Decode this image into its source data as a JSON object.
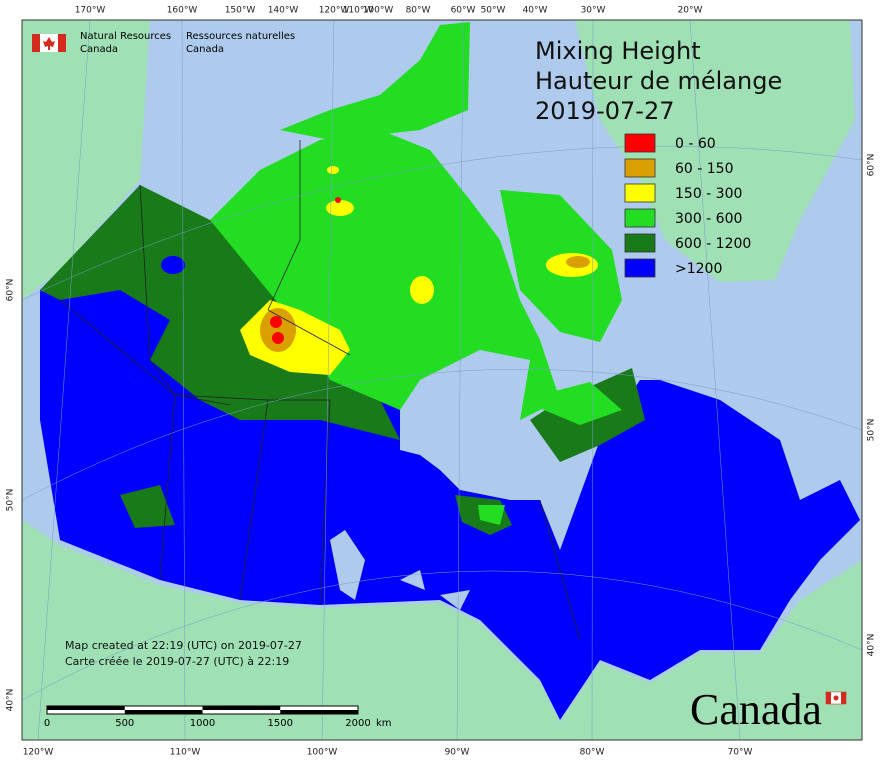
{
  "logo": {
    "english": [
      "Natural Resources",
      "Canada"
    ],
    "french": [
      "Ressources naturelles",
      "Canada"
    ]
  },
  "title": [
    "Mixing Height",
    "Hauteur de mélange",
    "2019-07-27"
  ],
  "legend": [
    {
      "label": "0 - 60",
      "color": "#ff0000"
    },
    {
      "label": "60 - 150",
      "color": "#d9a000"
    },
    {
      "label": "150 - 300",
      "color": "#ffff00"
    },
    {
      "label": "300 - 600",
      "color": "#22dd22"
    },
    {
      "label": "600 - 1200",
      "color": "#187a18"
    },
    {
      "label": ">1200",
      "color": "#0000ff"
    }
  ],
  "graticule": {
    "top": [
      "170°W",
      "160°W",
      "150°W",
      "140°W",
      "120°W",
      "110°W",
      "100°W",
      "80°W",
      "60°W",
      "50°W",
      "40°W",
      "30°W",
      "20°W"
    ],
    "bottom": [
      "120°W",
      "110°W",
      "100°W",
      "90°W",
      "80°W",
      "70°W"
    ],
    "left": [
      "60°N",
      "50°N",
      "40°N"
    ],
    "right": [
      "60°N",
      "50°N",
      "40°N"
    ]
  },
  "footer": [
    "Map created at 22:19 (UTC) on 2019-07-27",
    "Carte créée le 2019-07-27 (UTC) à 22:19"
  ],
  "scale_bar": {
    "labels": [
      "0",
      "500",
      "1000",
      "1500",
      "2000"
    ],
    "unit": "km"
  },
  "wordmark": "Canada"
}
